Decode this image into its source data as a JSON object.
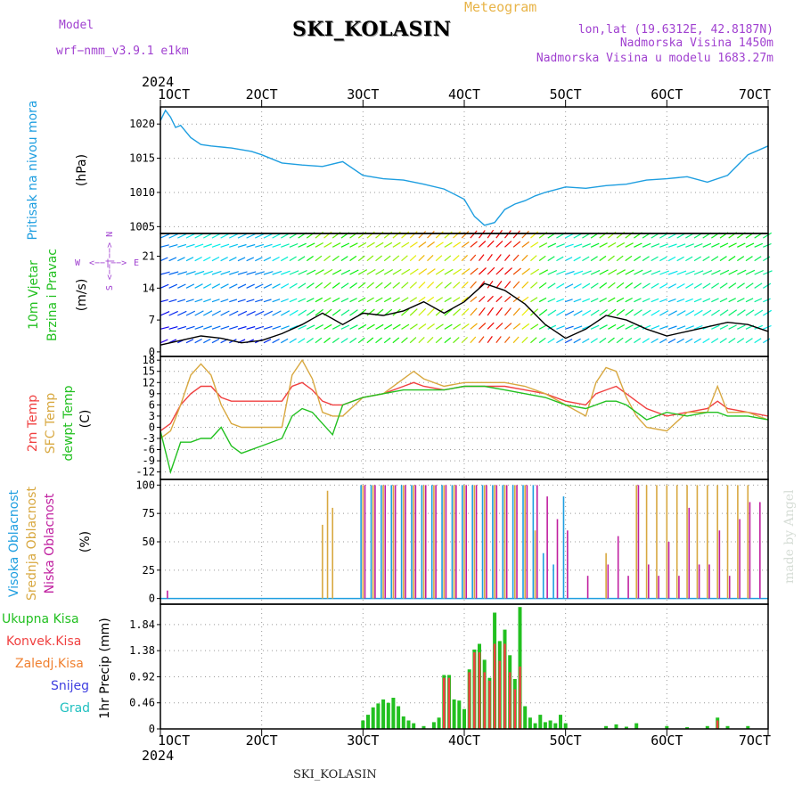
{
  "header": {
    "model_label": "Model",
    "model_name": "wrf−nmm_v3.9.1 e1km",
    "station_title": "SKI_KOLASIN",
    "product": "Meteogram",
    "lonlat": "lon,lat (19.6312E, 42.8187N)",
    "elevation": "Nadmorska Visina 1450m",
    "model_elevation": "Nadmorska Visina u modelu 1683.27m"
  },
  "footer": {
    "station": "SKI_KOLASIN",
    "credit": "made by Angel"
  },
  "colors": {
    "pressure": "#1e9ee0",
    "wind_label": "#22c020",
    "wind_unit": "#a040d0",
    "t2m": "#f04040",
    "tsfc": "#d8a840",
    "dewpt": "#22c020",
    "cloud_high": "#1e9ee0",
    "cloud_mid": "#d8a840",
    "cloud_low": "#c020a0",
    "precip_total": "#22c020",
    "precip_conv": "#f04040",
    "precip_frozen": "#f08030",
    "snow": "#4040e0",
    "hail": "#20c0c0",
    "grid": "#999999"
  },
  "time_axis": {
    "year": "2024",
    "ticks": [
      "1OCT",
      "2OCT",
      "3OCT",
      "4OCT",
      "5OCT",
      "6OCT",
      "7OCT"
    ],
    "range_days": [
      1,
      7
    ]
  },
  "chart_data": [
    {
      "type": "line",
      "name": "pressure",
      "ylabel": "Pritisak na nivou mora",
      "unit": "(hPa)",
      "yticks": [
        1005,
        1010,
        1015,
        1020
      ],
      "ylim": [
        1004,
        1022.5
      ],
      "x": [
        1.0,
        1.05,
        1.1,
        1.15,
        1.2,
        1.3,
        1.4,
        1.5,
        1.7,
        1.9,
        2.0,
        2.2,
        2.4,
        2.6,
        2.8,
        3.0,
        3.2,
        3.4,
        3.6,
        3.8,
        4.0,
        4.1,
        4.2,
        4.3,
        4.4,
        4.5,
        4.6,
        4.7,
        4.8,
        5.0,
        5.2,
        5.4,
        5.6,
        5.8,
        6.0,
        6.2,
        6.4,
        6.6,
        6.8,
        7.0
      ],
      "values": [
        1020.5,
        1022.0,
        1021.0,
        1019.5,
        1019.8,
        1018.0,
        1017.0,
        1016.8,
        1016.5,
        1016.0,
        1015.5,
        1014.3,
        1014.0,
        1013.8,
        1014.5,
        1012.5,
        1012.0,
        1011.8,
        1011.2,
        1010.5,
        1009.0,
        1006.5,
        1005.2,
        1005.6,
        1007.5,
        1008.3,
        1008.8,
        1009.5,
        1010.0,
        1010.8,
        1010.6,
        1011.0,
        1011.2,
        1011.8,
        1012.0,
        1012.3,
        1011.5,
        1012.5,
        1015.5,
        1016.8
      ]
    },
    {
      "type": "line",
      "name": "wind",
      "ylabel": "10m Vjetar Brzina i Pravac",
      "unit": "(m/s)",
      "compass": [
        "W",
        "<−−|−−>",
        "E",
        "S <−−|−−> N"
      ],
      "yticks": [
        0,
        7,
        14,
        21
      ],
      "ylim": [
        -1,
        26
      ],
      "x": [
        1.0,
        1.2,
        1.4,
        1.6,
        1.8,
        2.0,
        2.2,
        2.4,
        2.6,
        2.8,
        3.0,
        3.2,
        3.4,
        3.6,
        3.8,
        4.0,
        4.2,
        4.4,
        4.6,
        4.8,
        5.0,
        5.2,
        5.4,
        5.6,
        5.8,
        6.0,
        6.2,
        6.4,
        6.6,
        6.8,
        7.0
      ],
      "values": [
        1.5,
        2.5,
        3.5,
        3.0,
        2.0,
        2.5,
        4.0,
        6.0,
        8.5,
        6.0,
        8.5,
        8.0,
        9.0,
        11.0,
        8.5,
        11.0,
        15.0,
        13.5,
        10.5,
        6.0,
        3.0,
        5.0,
        8.0,
        7.0,
        5.0,
        3.5,
        4.5,
        5.5,
        6.5,
        6.0,
        4.5
      ]
    },
    {
      "type": "line",
      "name": "temperature",
      "ylabel_series": [
        "2m Temp",
        "SFC Temp",
        "dewpt Temp"
      ],
      "unit": "(C)",
      "yticks": [
        -12,
        -9,
        -6,
        -3,
        0,
        3,
        6,
        9,
        12,
        15,
        18
      ],
      "ylim": [
        -14,
        19
      ],
      "x": [
        1.0,
        1.1,
        1.2,
        1.3,
        1.4,
        1.5,
        1.6,
        1.7,
        1.8,
        2.0,
        2.2,
        2.3,
        2.4,
        2.5,
        2.6,
        2.7,
        2.8,
        3.0,
        3.2,
        3.4,
        3.5,
        3.6,
        3.8,
        4.0,
        4.2,
        4.4,
        4.6,
        4.8,
        5.0,
        5.2,
        5.3,
        5.4,
        5.5,
        5.6,
        5.7,
        5.8,
        6.0,
        6.2,
        6.4,
        6.5,
        6.6,
        6.8,
        7.0
      ],
      "series": [
        {
          "name": "2m Temp",
          "values": [
            -1,
            1,
            6,
            9,
            11,
            11,
            8,
            7,
            7,
            7,
            7,
            11,
            12,
            10,
            7,
            6,
            6,
            8,
            9,
            11,
            12,
            11,
            10,
            11,
            11,
            11,
            10,
            9,
            7,
            6,
            9,
            10,
            11,
            9,
            7,
            5,
            3,
            4,
            5,
            7,
            5,
            4,
            3
          ]
        },
        {
          "name": "SFC Temp",
          "values": [
            -3,
            -1,
            6,
            14,
            17,
            14,
            6,
            1,
            0,
            0,
            0,
            14,
            18,
            13,
            4,
            3,
            3,
            8,
            9,
            13,
            15,
            13,
            11,
            12,
            12,
            12,
            11,
            9,
            6,
            3,
            12,
            16,
            15,
            8,
            3,
            0,
            -1,
            4,
            4,
            11,
            4,
            4,
            2
          ]
        },
        {
          "name": "dewpt Temp",
          "values": [
            -1,
            -12,
            -4,
            -4,
            -3,
            -3,
            0,
            -5,
            -7,
            -5,
            -3,
            3,
            5,
            4,
            1,
            -2,
            6,
            8,
            9,
            10,
            10,
            10,
            10,
            11,
            11,
            10,
            9,
            8,
            6,
            5,
            6,
            7,
            7,
            6,
            4,
            2,
            4,
            3,
            4,
            4,
            3,
            3,
            2
          ]
        }
      ]
    },
    {
      "type": "bar",
      "name": "clouds",
      "ylabel_series": [
        "Visoka Oblacnost",
        "Srednja Oblacnost",
        "Niska Oblacnost"
      ],
      "unit": "(%)",
      "yticks": [
        0,
        25,
        50,
        75,
        100
      ],
      "ylim": [
        -5,
        105
      ],
      "x": [
        1.05,
        2.6,
        2.65,
        2.7,
        3.0,
        3.1,
        3.2,
        3.3,
        3.4,
        3.5,
        3.6,
        3.7,
        3.8,
        3.9,
        4.0,
        4.1,
        4.2,
        4.3,
        4.4,
        4.5,
        4.6,
        4.7,
        4.8,
        4.9,
        5.0,
        5.2,
        5.4,
        5.5,
        5.6,
        5.7,
        5.8,
        5.9,
        6.0,
        6.1,
        6.2,
        6.3,
        6.4,
        6.5,
        6.6,
        6.7,
        6.8,
        6.9
      ],
      "series": [
        {
          "name": "Visoka Oblacnost",
          "values": [
            0,
            0,
            0,
            0,
            100,
            100,
            100,
            100,
            100,
            100,
            100,
            100,
            100,
            100,
            100,
            100,
            100,
            100,
            100,
            100,
            100,
            100,
            40,
            30,
            90,
            0,
            0,
            0,
            0,
            0,
            0,
            0,
            0,
            0,
            0,
            0,
            0,
            0,
            0,
            0,
            0,
            0
          ]
        },
        {
          "name": "Srednja Oblacnost",
          "values": [
            0,
            65,
            95,
            80,
            100,
            100,
            100,
            100,
            100,
            100,
            100,
            100,
            100,
            100,
            100,
            100,
            100,
            100,
            100,
            100,
            100,
            60,
            0,
            0,
            0,
            0,
            40,
            0,
            0,
            100,
            100,
            100,
            100,
            100,
            100,
            100,
            100,
            100,
            100,
            100,
            100,
            0
          ]
        },
        {
          "name": "Niska Oblacnost",
          "values": [
            7,
            0,
            0,
            0,
            100,
            100,
            100,
            100,
            100,
            100,
            100,
            100,
            100,
            100,
            100,
            100,
            100,
            100,
            100,
            100,
            100,
            100,
            90,
            70,
            60,
            20,
            30,
            55,
            20,
            100,
            30,
            20,
            50,
            20,
            80,
            30,
            30,
            60,
            20,
            70,
            85,
            85
          ]
        }
      ]
    },
    {
      "type": "bar",
      "name": "precip",
      "ylabel": "1hr Precip",
      "unit": "(mm)",
      "legend_series": [
        "Ukupna Kisa",
        "Konvek.Kisa",
        "Zaledj.Kisa",
        "Snijeg",
        "Grad"
      ],
      "yticks": [
        0,
        0.46,
        0.92,
        1.38,
        1.84
      ],
      "ylim": [
        0,
        2.2
      ],
      "x": [
        3.0,
        3.05,
        3.1,
        3.15,
        3.2,
        3.25,
        3.3,
        3.35,
        3.4,
        3.45,
        3.5,
        3.6,
        3.7,
        3.75,
        3.8,
        3.85,
        3.9,
        3.95,
        4.0,
        4.05,
        4.1,
        4.15,
        4.2,
        4.25,
        4.3,
        4.35,
        4.4,
        4.45,
        4.5,
        4.55,
        4.6,
        4.65,
        4.7,
        4.75,
        4.8,
        4.85,
        4.9,
        4.95,
        5.0,
        5.4,
        5.5,
        5.6,
        5.7,
        6.0,
        6.2,
        6.4,
        6.5,
        6.6,
        6.8
      ],
      "series": [
        {
          "name": "Ukupna Kisa",
          "values": [
            0.15,
            0.25,
            0.38,
            0.45,
            0.52,
            0.46,
            0.55,
            0.4,
            0.22,
            0.15,
            0.1,
            0.05,
            0.12,
            0.2,
            0.95,
            0.95,
            0.52,
            0.5,
            0.35,
            1.05,
            1.4,
            1.5,
            1.22,
            0.9,
            2.05,
            1.55,
            1.75,
            1.3,
            0.88,
            2.15,
            0.4,
            0.2,
            0.1,
            0.25,
            0.12,
            0.15,
            0.1,
            0.25,
            0.1,
            0.05,
            0.08,
            0.04,
            0.1,
            0.05,
            0.03,
            0.05,
            0.2,
            0.05,
            0.05
          ]
        },
        {
          "name": "Konvek.Kisa",
          "values": [
            0,
            0,
            0,
            0,
            0,
            0,
            0,
            0,
            0,
            0,
            0,
            0,
            0,
            0,
            0.9,
            0.9,
            0,
            0,
            0,
            1.0,
            1.35,
            1.35,
            1.0,
            0.85,
            1.5,
            1.2,
            1.5,
            1.0,
            0.7,
            1.1,
            0,
            0,
            0,
            0,
            0,
            0,
            0,
            0,
            0,
            0,
            0,
            0,
            0,
            0,
            0,
            0,
            0.15,
            0,
            0
          ]
        }
      ]
    }
  ]
}
